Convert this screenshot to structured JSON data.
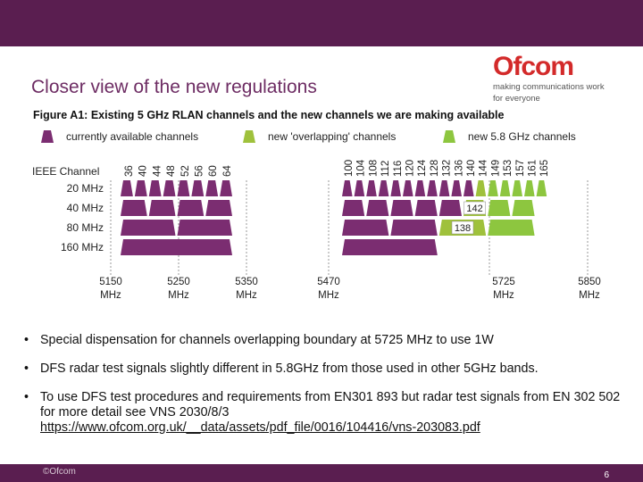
{
  "slide": {
    "title": "Closer view of the new regulations",
    "figure_caption": "Figure A1: Existing 5 GHz RLAN channels and the new channels we are making available",
    "logo_word": "Ofcom",
    "logo_tagline_1": "making communications work",
    "logo_tagline_2": "for everyone",
    "footer_copyright": "©Ofcom",
    "page_number": "6"
  },
  "colors": {
    "band": "#5a1e50",
    "existing": "#7b2d71",
    "overlap": "#9fc13c",
    "new": "#8dc63f",
    "title": "#6d2c63"
  },
  "chart_data": {
    "type": "table",
    "title": "Existing 5 GHz RLAN channels and the new channels we are making available",
    "legend": [
      {
        "label": "currently available channels",
        "kind": "existing"
      },
      {
        "label": "new 'overlapping' channels",
        "kind": "overlap"
      },
      {
        "label": "new 5.8 GHz channels",
        "kind": "new"
      }
    ],
    "channel_header": "IEEE Channel",
    "channels_low": [
      "36",
      "40",
      "44",
      "48",
      "52",
      "56",
      "60",
      "64"
    ],
    "channels_high": [
      "100",
      "104",
      "108",
      "112",
      "116",
      "120",
      "124",
      "128",
      "132",
      "136",
      "140",
      "144",
      "149",
      "153",
      "157",
      "161",
      "165"
    ],
    "rows": [
      "20 MHz",
      "40 MHz",
      "80 MHz",
      "160 MHz"
    ],
    "row_blocks": [
      {
        "row": "20 MHz",
        "low": 8,
        "high": [
          {
            "n": 11,
            "kind": "existing"
          },
          {
            "n": 1,
            "kind": "overlap"
          },
          {
            "n": 5,
            "kind": "new"
          }
        ]
      },
      {
        "row": "40 MHz",
        "low": 4,
        "high": [
          {
            "n": 5,
            "kind": "existing"
          },
          {
            "n": 1,
            "kind": "overlap",
            "label": "142"
          },
          {
            "n": 2,
            "kind": "new"
          }
        ]
      },
      {
        "row": "80 MHz",
        "low": 2,
        "high": [
          {
            "n": 2,
            "kind": "existing"
          },
          {
            "n": 1,
            "kind": "overlap",
            "label": "138"
          },
          {
            "n": 1,
            "kind": "new"
          }
        ]
      },
      {
        "row": "160 MHz",
        "low": 1,
        "high": [
          {
            "n": 1,
            "kind": "existing"
          }
        ]
      }
    ],
    "freq_axis": [
      {
        "value": "5150",
        "unit": "MHz"
      },
      {
        "value": "5250",
        "unit": "MHz"
      },
      {
        "value": "5350",
        "unit": "MHz"
      },
      {
        "value": "5470",
        "unit": "MHz"
      },
      {
        "value": "5725",
        "unit": "MHz"
      },
      {
        "value": "5850",
        "unit": "MHz"
      }
    ]
  },
  "bullets": [
    "Special dispensation for channels overlapping boundary at 5725 MHz to use 1W",
    "DFS radar test signals slightly different in 5.8GHz from those used in other 5GHz bands.",
    "To use DFS test procedures and requirements from EN301 893 but radar test signals from EN 302 502 for more detail see VNS 2030/8/3"
  ],
  "link": "https://www.ofcom.org.uk/__data/assets/pdf_file/0016/104416/vns-203083.pdf"
}
